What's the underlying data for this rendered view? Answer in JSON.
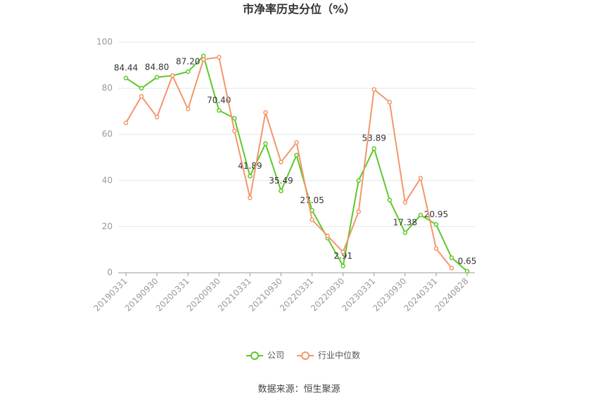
{
  "chart_data": {
    "type": "line",
    "title": "市净率历史分位（%）",
    "categories": [
      "20190331",
      null,
      "20190930",
      null,
      "20200331",
      null,
      "20200930",
      null,
      "20210331",
      null,
      "20210930",
      null,
      "20220331",
      null,
      "20220930",
      null,
      "20230331",
      null,
      "20230930",
      null,
      "20240331",
      null,
      "20240828"
    ],
    "series": [
      {
        "name": "公司",
        "color": "#5ec72b",
        "values": [
          84.44,
          80,
          84.8,
          85.5,
          87.2,
          94,
          70.4,
          67,
          41.89,
          56,
          35.49,
          51,
          27.05,
          15,
          2.91,
          40,
          53.89,
          31.5,
          17.38,
          25,
          20.95,
          6.5,
          0.65
        ],
        "value_labels": [
          "84.44",
          null,
          "84.80",
          null,
          "87.20",
          null,
          "70.40",
          null,
          "41.89",
          null,
          "35.49",
          null,
          "27.05",
          null,
          "2.91",
          null,
          "53.89",
          null,
          "17.38",
          null,
          "20.95",
          null,
          "0.65"
        ]
      },
      {
        "name": "行业中位数",
        "color": "#f4956a",
        "values": [
          65,
          76.5,
          67.5,
          85.5,
          71,
          92.5,
          93.5,
          61.5,
          32.5,
          69.5,
          48,
          56.5,
          23,
          16,
          9,
          26.5,
          79.5,
          74,
          30.5,
          41,
          10.5,
          2,
          null
        ]
      }
    ],
    "ylim": [
      0,
      100
    ],
    "yticks": [
      0,
      20,
      40,
      60,
      80,
      100
    ],
    "grid": true,
    "source": "数据来源：恒生聚源"
  }
}
